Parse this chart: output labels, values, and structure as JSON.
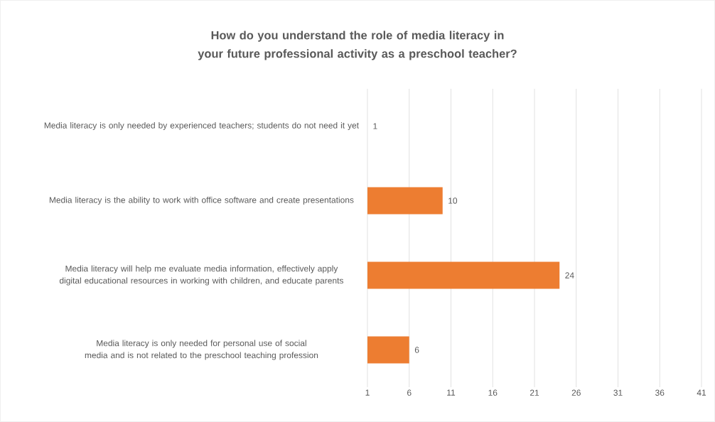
{
  "chart_data": {
    "type": "bar",
    "orientation": "horizontal",
    "title": "How do you understand the role of media literacy in your future professional activity as a preschool teacher?",
    "categories": [
      "Media literacy is only needed by experienced teachers; students do not need it yet",
      "Media literacy is the ability to work with office software and create presentations",
      "Media literacy will help me evaluate media information, effectively apply digital educational resources in working with children, and educate parents",
      "Media literacy is only needed for personal use of social media and is not related to the preschool teaching profession"
    ],
    "values": [
      1,
      10,
      24,
      6
    ],
    "color": "#ed7d31",
    "xlim": [
      1,
      41
    ],
    "xticks": [
      1,
      6,
      11,
      16,
      21,
      26,
      31,
      36,
      41
    ],
    "grid": "x",
    "data_labels": true
  }
}
